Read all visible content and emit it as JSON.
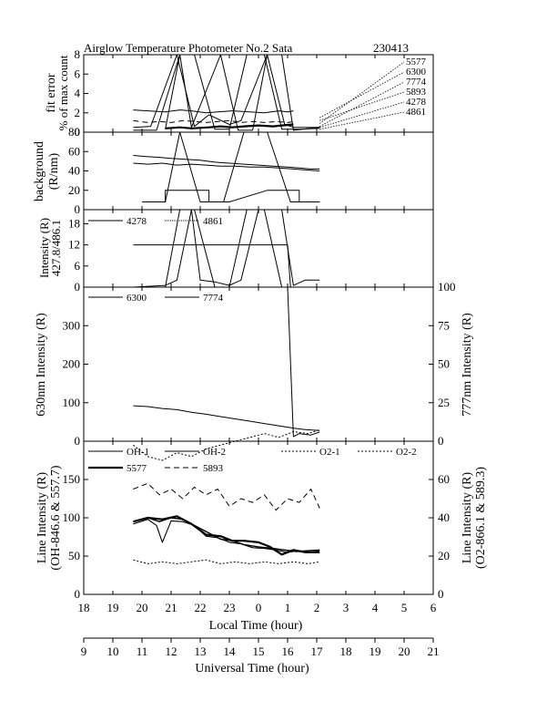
{
  "title": {
    "main": "Airglow Temperature Photometer No.2  Sata",
    "id": "230413"
  },
  "colors": {
    "line": "#000000",
    "background": "#ffffff"
  },
  "chart_data": [
    {
      "panel": "fit-error",
      "type": "line",
      "ylabel": [
        "fit error",
        "% of max count"
      ],
      "ylim": [
        0,
        8
      ],
      "yticks": [
        "0",
        "2",
        "4",
        "6",
        "8"
      ],
      "callouts": [
        "5577",
        "6300",
        "7774",
        "5893",
        "4278",
        "4861"
      ],
      "series": [
        {
          "name": "5577",
          "x": [
            20.8,
            21.3,
            21.7,
            22.3,
            22.7,
            23.1,
            23.5,
            24.0,
            24.5,
            24.8,
            25.2
          ],
          "y": [
            0.4,
            0.5,
            0.4,
            0.5,
            0.6,
            0.5,
            0.6,
            0.7,
            0.6,
            0.7,
            0.8
          ]
        },
        {
          "name": "6300",
          "x": [
            19.7,
            20.2,
            20.8,
            21.3,
            21.7,
            22.2,
            22.6,
            23.1,
            23.7,
            24.2,
            24.7,
            25.0,
            25.2
          ],
          "y": [
            2.3,
            2.2,
            2.1,
            2.3,
            2.2,
            2.0,
            2.1,
            2.2,
            2.1,
            2.0,
            2.2,
            2.1,
            2.2
          ]
        },
        {
          "name": "7774",
          "x": [
            19.7,
            20.5,
            21.3,
            21.7,
            22.7,
            23.3,
            23.8,
            24.3,
            24.8,
            25.2,
            26.1
          ],
          "y": [
            0.2,
            0.2,
            8.0,
            0.5,
            8.0,
            0.2,
            0.2,
            8.0,
            8.0,
            0.2,
            0.5
          ]
        },
        {
          "name": "5893",
          "x": [
            19.7,
            20.2,
            20.6,
            21.0,
            21.4,
            21.8,
            22.2,
            22.6,
            23.0,
            23.4,
            23.8,
            24.2,
            24.6,
            25.0,
            25.2
          ],
          "y": [
            1.2,
            1.0,
            1.1,
            1.0,
            1.2,
            1.1,
            1.0,
            1.1,
            1.2,
            1.0,
            1.1,
            1.0,
            1.1,
            1.0,
            1.1
          ]
        },
        {
          "name": "4278",
          "x": [
            19.7,
            20.3,
            21.2,
            21.8,
            22.3,
            23.0,
            23.4,
            24.3,
            24.9,
            25.2,
            26.1
          ],
          "y": [
            0.5,
            0.6,
            8.0,
            0.6,
            1.8,
            0.8,
            1.2,
            8.0,
            0.8,
            0.5,
            0.5
          ]
        },
        {
          "name": "4861",
          "x": [
            20.8,
            21.3,
            21.8,
            22.5,
            23.0,
            23.6,
            24.2,
            24.8,
            25.4,
            26.1
          ],
          "y": [
            0.3,
            8.0,
            8.0,
            0.3,
            0.3,
            8.0,
            8.0,
            0.3,
            0.3,
            0.4
          ]
        }
      ]
    },
    {
      "panel": "background",
      "type": "line",
      "ylabel": [
        "background",
        "(R/nm)"
      ],
      "ylim": [
        0,
        80
      ],
      "yticks": [
        "0",
        "20",
        "40",
        "60",
        "80"
      ],
      "series": [
        {
          "name": "s1",
          "x": [
            19.7,
            20.1,
            20.6,
            21.0,
            21.5,
            22.0,
            22.5,
            23.0,
            23.5,
            24.0,
            24.5,
            25.0,
            25.4,
            25.8,
            26.1
          ],
          "y": [
            56,
            55,
            54,
            53,
            52,
            51,
            49,
            48,
            47,
            46,
            45,
            44,
            43,
            42,
            42
          ]
        },
        {
          "name": "s2",
          "x": [
            19.7,
            20.2,
            20.7,
            21.2,
            21.7,
            22.2,
            22.7,
            23.2,
            23.7,
            24.2,
            24.7,
            25.2,
            25.6,
            26.1
          ],
          "y": [
            48,
            47,
            48,
            46,
            47,
            46,
            45,
            45,
            44,
            44,
            43,
            42,
            41,
            40
          ]
        },
        {
          "name": "s3",
          "x": [
            20.0,
            20.8,
            20.8,
            22.3,
            22.3,
            23.0,
            23.0,
            24.3,
            24.3,
            25.4,
            25.4,
            26.1
          ],
          "y": [
            8,
            8,
            20,
            20,
            8,
            8,
            8,
            20,
            20,
            20,
            8,
            8
          ]
        },
        {
          "name": "s4",
          "x": [
            20.0,
            20.8,
            21.3,
            22.0,
            22.8,
            23.5,
            24.3,
            25.1,
            25.4,
            26.1
          ],
          "y": [
            8,
            8,
            80,
            8,
            8,
            80,
            80,
            8,
            8,
            8
          ]
        }
      ]
    },
    {
      "panel": "intensity-427-486",
      "type": "line",
      "ylabel": [
        "Intensity (R)",
        "427.8/486.1"
      ],
      "ylim": [
        0,
        22
      ],
      "yticks": [
        "0",
        "6",
        "12",
        "18"
      ],
      "series": [
        {
          "name": "4278",
          "x": [
            19.7,
            20.8,
            21.2,
            21.7,
            22.0,
            22.5,
            23.0,
            23.4,
            24.0,
            24.8,
            25.2,
            25.6,
            26.1
          ],
          "y": [
            0,
            0.5,
            2,
            22,
            2,
            1.5,
            0.5,
            2,
            22,
            22,
            0.5,
            2,
            2
          ]
        },
        {
          "name": "4861",
          "x": [
            20.8,
            21.3,
            21.8,
            22.5,
            23.0,
            23.6,
            24.2,
            24.8,
            25.4,
            26.1
          ],
          "y": [
            0,
            22,
            22,
            0,
            0,
            22,
            22,
            0,
            0,
            0
          ]
        },
        {
          "name": "4861-step",
          "x": [
            19.7,
            25.0,
            25.1,
            26.1
          ],
          "y": [
            12,
            12,
            0,
            0
          ]
        }
      ]
    },
    {
      "panel": "630-777",
      "type": "line",
      "ylabel": "630nm Intensity (R)",
      "y2label": "777nm Intensity (R)",
      "ylim": [
        0,
        400
      ],
      "y2lim": [
        0,
        100
      ],
      "yticks": [
        "0",
        "100",
        "200",
        "300"
      ],
      "y2ticks": [
        "0",
        "25",
        "50",
        "75",
        "100"
      ],
      "series": [
        {
          "name": "6300",
          "x": [
            19.7,
            20.2,
            20.7,
            21.2,
            21.7,
            22.2,
            22.7,
            23.2,
            23.7,
            24.2,
            24.7,
            25.2,
            25.6,
            26.1
          ],
          "y": [
            92,
            90,
            85,
            82,
            75,
            70,
            64,
            58,
            52,
            46,
            40,
            34,
            30,
            28
          ]
        },
        {
          "name": "7774",
          "x": [
            25.0,
            25.2,
            25.4,
            25.8,
            26.1
          ],
          "y": [
            100,
            3,
            5,
            4,
            6
          ]
        }
      ]
    },
    {
      "panel": "line-intensity",
      "type": "line",
      "ylabel": [
        "Line Intensity (R)",
        "(OH-846.6 & 557.7)"
      ],
      "y2label": [
        "Line Intensity (R)",
        "(O2-866.1 & 589.3)"
      ],
      "ylim": [
        0,
        200
      ],
      "y2lim": [
        0,
        80
      ],
      "yticks": [
        "0",
        "50",
        "100",
        "150"
      ],
      "y2ticks": [
        "0",
        "20",
        "40",
        "60"
      ],
      "xticks_local": [
        "18",
        "19",
        "20",
        "21",
        "22",
        "23",
        "0",
        "1",
        "2",
        "3",
        "4",
        "5",
        "6"
      ],
      "xticks_universal": [
        "9",
        "10",
        "11",
        "12",
        "13",
        "14",
        "15",
        "16",
        "17",
        "18",
        "19",
        "20",
        "21"
      ],
      "xlabel_local": "Local Time (hour)",
      "xlabel_universal": "Universal Time (hour)",
      "series": [
        {
          "name": "OH-1",
          "x": [
            19.7,
            20.2,
            20.6,
            21.0,
            21.4,
            21.8,
            22.3,
            22.7,
            23.1,
            23.5,
            24.0,
            24.5,
            24.9,
            25.3,
            25.7,
            26.1
          ],
          "y": [
            95,
            100,
            95,
            100,
            98,
            90,
            80,
            72,
            70,
            65,
            62,
            60,
            58,
            56,
            57,
            58
          ]
        },
        {
          "name": "OH-2",
          "x": [
            19.7,
            20.2,
            20.5,
            20.7,
            21.0,
            21.4,
            21.8,
            22.2,
            22.6,
            23.0,
            23.4,
            23.8,
            24.2,
            24.6,
            25.0,
            25.4,
            25.8,
            26.1
          ],
          "y": [
            92,
            98,
            90,
            68,
            96,
            95,
            90,
            76,
            74,
            68,
            66,
            61,
            60,
            58,
            55,
            57,
            55,
            57
          ]
        },
        {
          "name": "5577",
          "x": [
            19.7,
            20.2,
            20.7,
            21.2,
            21.7,
            22.2,
            22.7,
            23.1,
            23.5,
            24.0,
            24.4,
            24.8,
            25.2,
            25.6,
            26.1
          ],
          "y": [
            95,
            100,
            98,
            102,
            92,
            78,
            76,
            70,
            70,
            68,
            62,
            52,
            58,
            55,
            55
          ]
        },
        {
          "name": "5893",
          "x": [
            19.7,
            20.2,
            20.6,
            21.0,
            21.4,
            21.8,
            22.2,
            22.6,
            23.0,
            23.4,
            23.8,
            24.2,
            24.6,
            25.0,
            25.4,
            25.8,
            26.1
          ],
          "y": [
            55,
            58,
            52,
            55,
            50,
            56,
            52,
            55,
            46,
            50,
            48,
            52,
            44,
            50,
            48,
            55,
            45
          ]
        },
        {
          "name": "O2-1",
          "x": [
            19.7,
            20.2,
            20.7,
            21.2,
            21.7,
            22.2,
            22.7,
            23.2,
            23.7,
            24.2,
            24.7,
            25.2,
            25.7,
            26.1
          ],
          "y": [
            78,
            72,
            70,
            74,
            72,
            76,
            78,
            80,
            82,
            84,
            82,
            85,
            84,
            86
          ]
        },
        {
          "name": "O2-2",
          "x": [
            19.7,
            20.2,
            20.7,
            21.2,
            21.7,
            22.2,
            22.7,
            23.2,
            23.7,
            24.2,
            24.7,
            25.2,
            25.7,
            26.1
          ],
          "y": [
            18,
            16,
            17,
            16,
            17,
            18,
            16,
            17,
            16,
            17,
            16,
            17,
            16,
            17
          ]
        }
      ]
    }
  ],
  "legends": {
    "fit_error": [
      "5577",
      "6300",
      "7774",
      "5893",
      "4278",
      "4861"
    ],
    "panel3": [
      "4278",
      "4861"
    ],
    "panel4": [
      "6300",
      "7774"
    ],
    "panel5": [
      "OH-1",
      "OH-2",
      "O2-1",
      "O2-2",
      "5577",
      "5893"
    ]
  }
}
